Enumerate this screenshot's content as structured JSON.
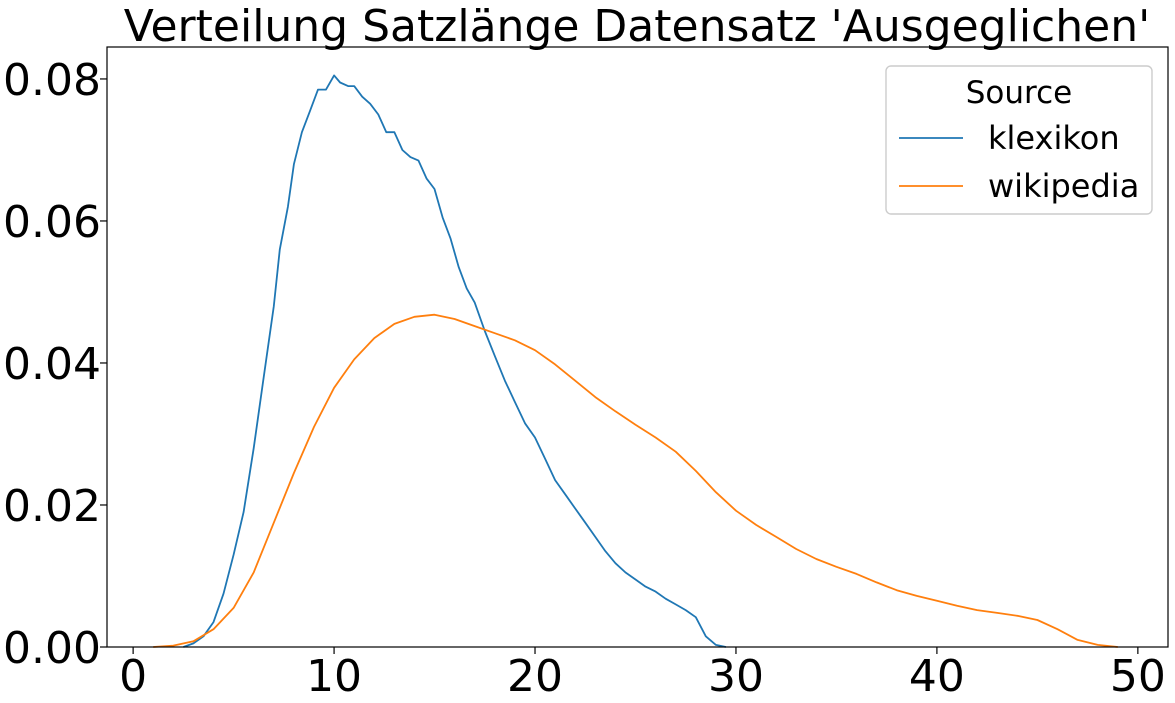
{
  "chart_data": {
    "type": "line",
    "title": "Verteilung Satzlänge Datensatz 'Ausgeglichen'",
    "xlabel": "",
    "ylabel": "",
    "xlim": [
      -1.3,
      51.5
    ],
    "ylim": [
      0,
      0.0845
    ],
    "x_ticks": [
      {
        "value": 0,
        "label": "0"
      },
      {
        "value": 10,
        "label": "10"
      },
      {
        "value": 20,
        "label": "20"
      },
      {
        "value": 30,
        "label": "30"
      },
      {
        "value": 40,
        "label": "40"
      },
      {
        "value": 50,
        "label": "50"
      }
    ],
    "y_ticks": [
      {
        "value": 0,
        "label": "0.00"
      },
      {
        "value": 0.02,
        "label": "0.02"
      },
      {
        "value": 0.04,
        "label": "0.04"
      },
      {
        "value": 0.06,
        "label": "0.06"
      },
      {
        "value": 0.08,
        "label": "0.08"
      }
    ],
    "grid": false,
    "legend": {
      "title": "Source",
      "placement": "top-right"
    },
    "series": [
      {
        "name": "klexikon",
        "color": "#1f77b4",
        "points": [
          [
            2.5,
            0.0
          ],
          [
            3.0,
            0.0005
          ],
          [
            3.5,
            0.0015
          ],
          [
            4.0,
            0.0035
          ],
          [
            4.5,
            0.0075
          ],
          [
            5.0,
            0.013
          ],
          [
            5.5,
            0.019
          ],
          [
            6.0,
            0.028
          ],
          [
            6.5,
            0.038
          ],
          [
            7.0,
            0.048
          ],
          [
            7.3,
            0.056
          ],
          [
            7.7,
            0.062
          ],
          [
            8.0,
            0.068
          ],
          [
            8.4,
            0.0725
          ],
          [
            8.8,
            0.0755
          ],
          [
            9.2,
            0.0785
          ],
          [
            9.6,
            0.0785
          ],
          [
            10.0,
            0.0805
          ],
          [
            10.3,
            0.0795
          ],
          [
            10.7,
            0.079
          ],
          [
            11.0,
            0.079
          ],
          [
            11.4,
            0.0775
          ],
          [
            11.8,
            0.0765
          ],
          [
            12.2,
            0.075
          ],
          [
            12.6,
            0.0725
          ],
          [
            13.0,
            0.0725
          ],
          [
            13.4,
            0.07
          ],
          [
            13.8,
            0.069
          ],
          [
            14.2,
            0.0685
          ],
          [
            14.6,
            0.066
          ],
          [
            15.0,
            0.0645
          ],
          [
            15.4,
            0.0605
          ],
          [
            15.8,
            0.0575
          ],
          [
            16.2,
            0.0535
          ],
          [
            16.6,
            0.0505
          ],
          [
            17.0,
            0.0485
          ],
          [
            17.5,
            0.0445
          ],
          [
            18.0,
            0.041
          ],
          [
            18.5,
            0.0375
          ],
          [
            19.0,
            0.0345
          ],
          [
            19.5,
            0.0315
          ],
          [
            20.0,
            0.0295
          ],
          [
            20.5,
            0.0265
          ],
          [
            21.0,
            0.0235
          ],
          [
            21.5,
            0.0215
          ],
          [
            22.0,
            0.0195
          ],
          [
            22.5,
            0.0175
          ],
          [
            23.0,
            0.0155
          ],
          [
            23.5,
            0.0135
          ],
          [
            24.0,
            0.0118
          ],
          [
            24.5,
            0.0105
          ],
          [
            25.0,
            0.0095
          ],
          [
            25.5,
            0.0085
          ],
          [
            26.0,
            0.0078
          ],
          [
            26.5,
            0.0068
          ],
          [
            27.0,
            0.006
          ],
          [
            27.5,
            0.0052
          ],
          [
            28.0,
            0.0042
          ],
          [
            28.5,
            0.0015
          ],
          [
            29.0,
            0.0003
          ],
          [
            29.5,
            0.0
          ]
        ]
      },
      {
        "name": "wikipedia",
        "color": "#ff7f0e",
        "points": [
          [
            1.0,
            0.0
          ],
          [
            2.0,
            0.0002
          ],
          [
            3.0,
            0.0008
          ],
          [
            4.0,
            0.0025
          ],
          [
            5.0,
            0.0055
          ],
          [
            6.0,
            0.0105
          ],
          [
            7.0,
            0.0175
          ],
          [
            8.0,
            0.0245
          ],
          [
            9.0,
            0.031
          ],
          [
            10.0,
            0.0365
          ],
          [
            11.0,
            0.0405
          ],
          [
            12.0,
            0.0435
          ],
          [
            13.0,
            0.0455
          ],
          [
            14.0,
            0.0465
          ],
          [
            15.0,
            0.0468
          ],
          [
            16.0,
            0.0462
          ],
          [
            17.0,
            0.0452
          ],
          [
            18.0,
            0.0442
          ],
          [
            19.0,
            0.0432
          ],
          [
            20.0,
            0.0418
          ],
          [
            21.0,
            0.0398
          ],
          [
            22.0,
            0.0375
          ],
          [
            23.0,
            0.0352
          ],
          [
            24.0,
            0.0332
          ],
          [
            25.0,
            0.0313
          ],
          [
            26.0,
            0.0295
          ],
          [
            27.0,
            0.0275
          ],
          [
            28.0,
            0.0248
          ],
          [
            29.0,
            0.0218
          ],
          [
            30.0,
            0.0192
          ],
          [
            31.0,
            0.0172
          ],
          [
            32.0,
            0.0155
          ],
          [
            33.0,
            0.0138
          ],
          [
            34.0,
            0.0124
          ],
          [
            35.0,
            0.0113
          ],
          [
            36.0,
            0.0103
          ],
          [
            37.0,
            0.0091
          ],
          [
            38.0,
            0.008
          ],
          [
            39.0,
            0.0072
          ],
          [
            40.0,
            0.0065
          ],
          [
            41.0,
            0.0058
          ],
          [
            42.0,
            0.0052
          ],
          [
            43.0,
            0.0048
          ],
          [
            44.0,
            0.0044
          ],
          [
            45.0,
            0.0038
          ],
          [
            46.0,
            0.0025
          ],
          [
            47.0,
            0.001
          ],
          [
            48.0,
            0.0003
          ],
          [
            49.0,
            0.0
          ]
        ]
      }
    ]
  }
}
